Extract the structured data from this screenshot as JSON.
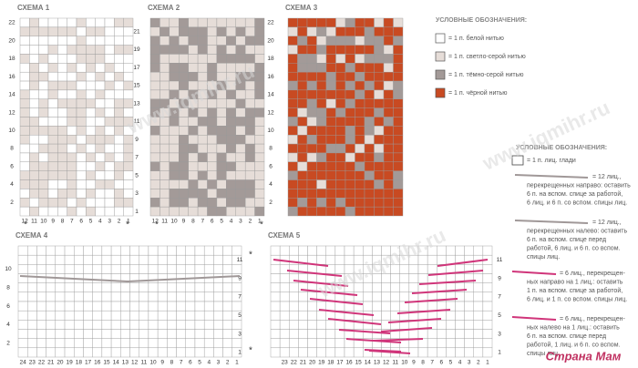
{
  "watermarks": [
    "www.iqmihr.ru",
    "www.iqmihr.ru",
    "www.iqmihr.ru"
  ],
  "logo": "Страна Мам",
  "schemes": [
    {
      "title": "СХЕМА 1",
      "left": [
        22,
        20,
        18,
        16,
        14,
        12,
        10,
        8,
        6,
        4,
        2
      ],
      "right": [
        21,
        19,
        17,
        15,
        13,
        11,
        9,
        7,
        5,
        3,
        1
      ],
      "bottom": [
        12,
        11,
        10,
        9,
        8,
        7,
        6,
        5,
        4,
        3,
        2,
        1
      ],
      "stars": [
        "*",
        "*"
      ]
    },
    {
      "title": "СХЕМА 2",
      "right": [
        22,
        20,
        18,
        16,
        14,
        12,
        10,
        8,
        6,
        4,
        2
      ],
      "bottom": [
        12,
        11,
        10,
        9,
        8,
        7,
        6,
        5,
        4,
        3,
        2,
        1
      ],
      "stars": [
        "*",
        "*"
      ]
    },
    {
      "title": "СХЕМА 3"
    },
    {
      "title": "СХЕМА 4",
      "left": [
        10,
        8,
        6,
        4,
        2
      ],
      "right": [
        11,
        9,
        7,
        5,
        3,
        1
      ],
      "bottom": [
        24,
        23,
        22,
        21,
        20,
        19,
        18,
        17,
        16,
        15,
        14,
        13,
        12,
        11,
        10,
        9,
        8,
        7,
        6,
        5,
        4,
        3,
        2,
        1
      ],
      "stars": [
        "*",
        "*"
      ]
    },
    {
      "title": "СХЕМА 5",
      "right": [
        11,
        9,
        7,
        5,
        3,
        1
      ],
      "bottom": [
        23,
        22,
        21,
        20,
        19,
        18,
        17,
        16,
        15,
        14,
        13,
        12,
        11,
        10,
        9,
        8,
        7,
        6,
        5,
        4,
        3,
        2,
        1
      ]
    }
  ],
  "legend1": {
    "title": "УСЛОВНЫЕ ОБОЗНАЧЕНИЯ:",
    "items": [
      "= 1 п. белой нитью",
      "= 1 п. светло-серой нитью",
      "= 1 п. тёмно-серой нитью",
      "= 1 п. чёрной нитью"
    ]
  },
  "legend2": {
    "title": "УСЛОВНЫЕ ОБОЗНАЧЕНИЯ:",
    "items": [
      [
        "= 1 п. лиц. глади"
      ],
      [
        "= 12 лиц.,",
        "перекрещенных направо: оставить",
        "6 п. на вспом. спице за работой,",
        "6 лиц. и 6 п. со вспом. спицы лиц."
      ],
      [
        "= 12 лиц.,",
        "перекрещенных налево: оставить",
        "6 п. на вспом. спице перед",
        "работой, 6 лиц. и 6 п. со вспом.",
        "спицы лиц."
      ],
      [
        "= 6 лиц., перекрещен-",
        "ных направо на 1 лиц.: оставить",
        "1 п. на вспом. спице за работой,",
        "6 лиц. и 1 п. со вспом. спицы лиц."
      ],
      [
        "= 6 лиц., перекрещен-",
        "ных налево на 1 лиц.: оставить",
        "6 п. на вспом. спице перед",
        "работой, 1 лиц. и 6 п. со вспом.",
        "спицы лиц."
      ]
    ]
  }
}
